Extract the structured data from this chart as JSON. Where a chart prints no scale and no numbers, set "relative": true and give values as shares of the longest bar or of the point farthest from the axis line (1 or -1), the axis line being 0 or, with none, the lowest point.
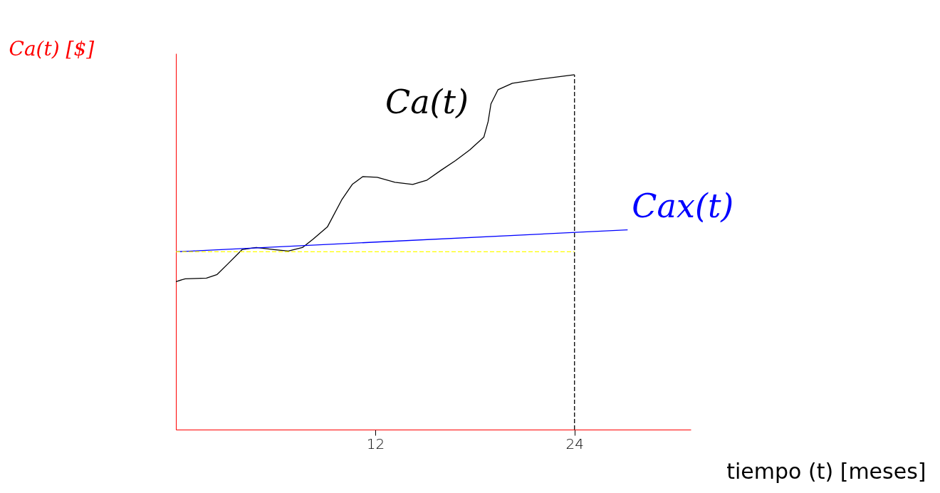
{
  "chart_data": {
    "type": "line",
    "relative": true,
    "xlabel": "tiempo (t) [meses]",
    "ylabel": "Ca(t)  [$]",
    "xlim": [
      0,
      31
    ],
    "xticks": [
      12,
      24
    ],
    "grid": false,
    "tick_labels": "x",
    "series": [
      {
        "name": "Ca(t)",
        "color": "#000000",
        "x": [
          0,
          0.56,
          1.84,
          2.48,
          3.13,
          3.98,
          4.84,
          5.91,
          6.77,
          7.62,
          8.27,
          9.12,
          9.98,
          10.62,
          11.26,
          12.12,
          13.19,
          14.26,
          15.12,
          15.97,
          16.83,
          17.69,
          18.54,
          18.8,
          18.97,
          19.4,
          20.26,
          21.97,
          24
        ],
        "values": [
          0.417,
          0.425,
          0.427,
          0.437,
          0.467,
          0.507,
          0.513,
          0.507,
          0.503,
          0.513,
          0.537,
          0.571,
          0.647,
          0.691,
          0.713,
          0.711,
          0.697,
          0.691,
          0.703,
          0.731,
          0.758,
          0.788,
          0.824,
          0.868,
          0.918,
          0.958,
          0.976,
          0.988,
          1.0
        ]
      },
      {
        "name": "Cax(t)",
        "color": "#0000ff",
        "x": [
          0,
          27.2
        ],
        "values": [
          0.501,
          0.563
        ]
      },
      {
        "color": "#ffff00",
        "line_style": "dashed",
        "x": [
          0,
          24
        ],
        "values": [
          0.501,
          0.501
        ]
      }
    ],
    "ref_lines": [
      {
        "axis": "x",
        "value": 24,
        "color": "#000000",
        "line_style": "dashed"
      }
    ]
  }
}
